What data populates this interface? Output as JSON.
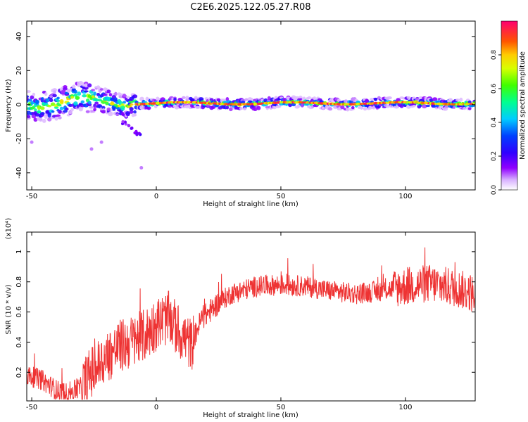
{
  "figure": {
    "title": "C2E6.2025.122.05.27.R08"
  },
  "chart_data": [
    {
      "type": "heatmap",
      "xlabel": "Height of straight line (km)",
      "ylabel": "Frequency (Hz)",
      "xlim": [
        -52,
        128
      ],
      "ylim": [
        -50,
        49
      ],
      "xticks": [
        "-50",
        "0",
        "50",
        "100"
      ],
      "yticks": [
        "40",
        "20",
        "0",
        "-20",
        "-40"
      ],
      "grid": false,
      "colorbar": {
        "label": "Normalized spectral amplitude",
        "range": [
          0.0,
          1.0
        ],
        "ticks": [
          "0.0",
          "0.2",
          "0.4",
          "0.6",
          "0.8"
        ]
      }
    },
    {
      "type": "line",
      "xlabel": "Height of straight line (km)",
      "ylabel": "SNR (10 * v/v)",
      "multiplier": "(x10⁴)",
      "xlim": [
        -52,
        128
      ],
      "ylim": [
        0.01,
        1.13
      ],
      "xticks": [
        "-50",
        "0",
        "50",
        "100"
      ],
      "yticks": [
        "0.2",
        "0.4",
        "0.6",
        "0.8",
        "1"
      ],
      "grid": false,
      "color": "#ee3333",
      "trend": {
        "x": [
          -52,
          -46,
          -40,
          -36,
          -30,
          -26,
          -20,
          -15,
          -10,
          -5,
          0,
          5,
          10,
          14,
          18,
          25,
          30,
          40,
          50,
          60,
          70,
          80,
          90,
          100,
          110,
          120,
          128
        ],
        "y": [
          0.18,
          0.15,
          0.08,
          0.06,
          0.1,
          0.2,
          0.3,
          0.37,
          0.4,
          0.44,
          0.52,
          0.56,
          0.45,
          0.38,
          0.55,
          0.66,
          0.72,
          0.77,
          0.78,
          0.77,
          0.74,
          0.72,
          0.74,
          0.77,
          0.79,
          0.76,
          0.72
        ]
      }
    }
  ]
}
